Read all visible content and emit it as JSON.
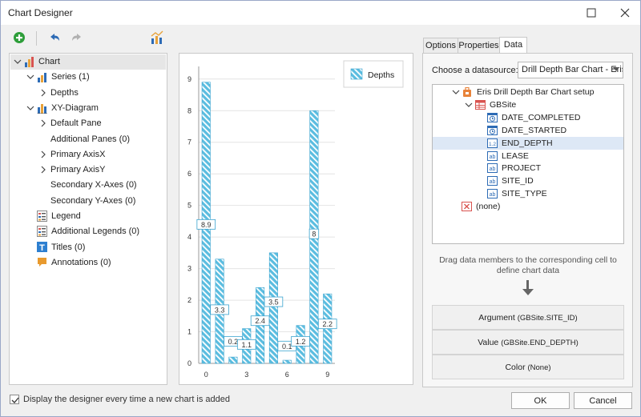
{
  "window": {
    "title": "Chart Designer"
  },
  "tree": {
    "items": [
      {
        "label": "Chart",
        "level": 0,
        "expanded": true,
        "icon": "chart-icon",
        "selected": true
      },
      {
        "label": "Series (1)",
        "level": 1,
        "expanded": true,
        "icon": "series-icon"
      },
      {
        "label": "Depths",
        "level": 2,
        "collapsed": true,
        "icon": ""
      },
      {
        "label": "XY-Diagram",
        "level": 1,
        "expanded": true,
        "icon": "diagram-icon"
      },
      {
        "label": "Default Pane",
        "level": 2,
        "collapsed": true,
        "icon": ""
      },
      {
        "label": "Additional Panes (0)",
        "level": 2,
        "icon": ""
      },
      {
        "label": "Primary AxisX",
        "level": 2,
        "collapsed": true,
        "icon": ""
      },
      {
        "label": "Primary AxisY",
        "level": 2,
        "collapsed": true,
        "icon": ""
      },
      {
        "label": "Secondary X-Axes (0)",
        "level": 2,
        "icon": ""
      },
      {
        "label": "Secondary Y-Axes (0)",
        "level": 2,
        "icon": ""
      },
      {
        "label": "Legend",
        "level": 1,
        "icon": "legend-icon"
      },
      {
        "label": "Additional Legends (0)",
        "level": 1,
        "icon": "legend-icon"
      },
      {
        "label": "Titles (0)",
        "level": 1,
        "icon": "titles-icon"
      },
      {
        "label": "Annotations (0)",
        "level": 1,
        "icon": "annotation-icon"
      }
    ]
  },
  "chart_data": {
    "type": "bar",
    "categories": [
      "0",
      "1",
      "2",
      "3",
      "4",
      "5",
      "6",
      "7",
      "8",
      "9"
    ],
    "x_tick_labels": [
      "0",
      "3",
      "6",
      "9"
    ],
    "x_tick_positions": [
      0,
      3,
      6,
      9
    ],
    "series": [
      {
        "name": "Depths",
        "values": [
          8.9,
          3.3,
          0.2,
          1.1,
          2.4,
          3.5,
          0.1,
          1.2,
          8,
          2.2
        ]
      }
    ],
    "data_labels": [
      "8.9",
      "3.3",
      "0.2",
      "1.1",
      "2.4",
      "3.5",
      "0.1",
      "1.2",
      "8",
      "2.2"
    ],
    "y_ticks": [
      "0",
      "1",
      "2",
      "3",
      "4",
      "5",
      "6",
      "7",
      "8",
      "9"
    ],
    "ylim": [
      0,
      9.4
    ],
    "legend": {
      "position": "top-right",
      "label": "Depths"
    },
    "colors": {
      "bar_fill": "#5bbde0",
      "bar_stripe": "#ffffff",
      "bar_stroke": "#3aa3cf"
    }
  },
  "tabs": [
    {
      "label": "Options",
      "active": false
    },
    {
      "label": "Properties",
      "active": false
    },
    {
      "label": "Data",
      "active": true
    }
  ],
  "data": {
    "datasource_label": "Choose a datasource:",
    "datasource_value": "Drill Depth Bar Chart - Eris",
    "fields": [
      {
        "label": "Eris Drill Depth Bar Chart setup",
        "level": 0,
        "icon": "datasource-icon",
        "expanded": true
      },
      {
        "label": "GBSite",
        "level": 1,
        "icon": "table-icon",
        "expanded": true
      },
      {
        "label": "DATE_COMPLETED",
        "level": 2,
        "icon": "date-icon"
      },
      {
        "label": "DATE_STARTED",
        "level": 2,
        "icon": "date-icon"
      },
      {
        "label": "END_DEPTH",
        "level": 2,
        "icon": "number-icon",
        "selected": true
      },
      {
        "label": "LEASE",
        "level": 2,
        "icon": "text-icon"
      },
      {
        "label": "PROJECT",
        "level": 2,
        "icon": "text-icon"
      },
      {
        "label": "SITE_ID",
        "level": 2,
        "icon": "text-icon"
      },
      {
        "label": "SITE_TYPE",
        "level": 2,
        "icon": "text-icon"
      },
      {
        "label": "(none)",
        "level": 0,
        "icon": "none-icon"
      }
    ],
    "hint_line1": "Drag data members to the corresponding cell to",
    "hint_line2": "define chart data",
    "argument_label": "Argument",
    "argument_value": "(GBSite.SITE_ID)",
    "value_label": "Value",
    "value_value": "(GBSite.END_DEPTH)",
    "color_label": "Color",
    "color_value": "(None)"
  },
  "footer": {
    "checkbox_label": "Display the designer every time a new chart is added",
    "checkbox_checked": true,
    "ok_label": "OK",
    "cancel_label": "Cancel"
  }
}
